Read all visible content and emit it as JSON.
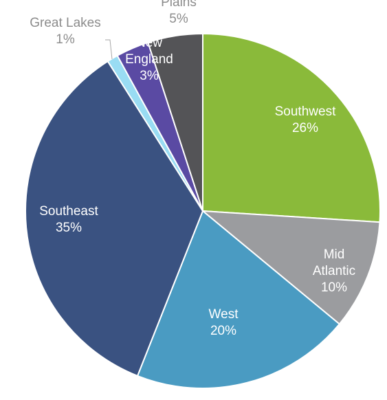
{
  "chart_data": {
    "type": "pie",
    "title": "",
    "slices": [
      {
        "label": "Southwest",
        "value": 26,
        "label_text": [
          "Southwest"
        ],
        "pct_text": "26%",
        "color": "#8aba3a"
      },
      {
        "label": "Mid Atlantic",
        "value": 10,
        "label_text": [
          "Mid",
          "Atlantic"
        ],
        "pct_text": "10%",
        "color": "#9b9c9f"
      },
      {
        "label": "West",
        "value": 20,
        "label_text": [
          "West"
        ],
        "pct_text": "20%",
        "color": "#4a9bc2"
      },
      {
        "label": "Southeast",
        "value": 35,
        "label_text": [
          "Southeast"
        ],
        "pct_text": "35%",
        "color": "#3a5281"
      },
      {
        "label": "Great Lakes",
        "value": 1,
        "label_text": [
          "Great Lakes"
        ],
        "pct_text": "1%",
        "color": "#99dcf3"
      },
      {
        "label": "New England",
        "value": 3,
        "label_text": [
          "New",
          "England"
        ],
        "pct_text": "3%",
        "color": "#5a4aa3"
      },
      {
        "label": "Plains",
        "value": 5,
        "label_text": [
          "Plains"
        ],
        "pct_text": "5%",
        "color": "#545457"
      }
    ],
    "start_angle_deg": 0,
    "direction": "clockwise",
    "legend": "none",
    "label_style": "data-labels",
    "slice_border_color": "#ffffff"
  }
}
